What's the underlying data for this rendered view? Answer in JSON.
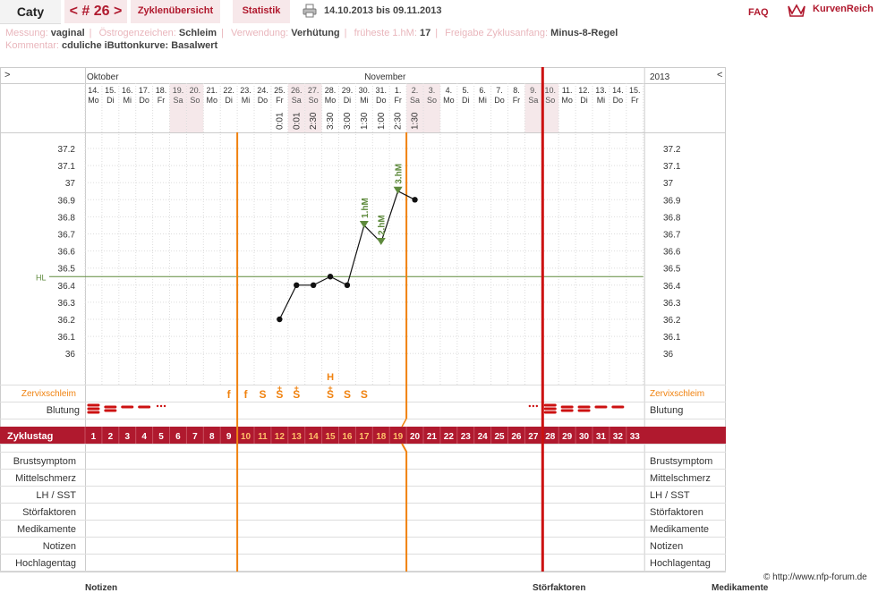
{
  "header": {
    "user": "Caty",
    "cycle_label": "< # 26 >",
    "tabs": [
      "Zyklenübersicht",
      "Statistik"
    ],
    "date_range": "14.10.2013 bis 09.11.2013",
    "faq": "FAQ",
    "brand": "KurvenReich"
  },
  "meta": {
    "messung_label": "Messung:",
    "messung": "vaginal",
    "oestrogen_label": "Östrogenzeichen:",
    "oestrogen": "Schleim",
    "verwendung_label": "Verwendung:",
    "verwendung": "Verhütung",
    "hm_label": "früheste 1.hM:",
    "hm": "17",
    "anfang_label": "Freigabe Zyklusanfang:",
    "anfang": "Minus-8-Regel",
    "kommentar_label": "Kommentar:",
    "kommentar": "cduliche iButtonkurve: Basalwert"
  },
  "chart_data": {
    "type": "line",
    "corner_left": ">",
    "corner_right": "<",
    "months": [
      {
        "label": "Oktober",
        "day_index": 0
      },
      {
        "label": "November",
        "day_index": 18
      }
    ],
    "year": "2013",
    "days": [
      {
        "d": "14.",
        "w": "Mo"
      },
      {
        "d": "15.",
        "w": "Di"
      },
      {
        "d": "16.",
        "w": "Mi"
      },
      {
        "d": "17.",
        "w": "Do"
      },
      {
        "d": "18.",
        "w": "Fr"
      },
      {
        "d": "19.",
        "w": "Sa"
      },
      {
        "d": "20.",
        "w": "So"
      },
      {
        "d": "21.",
        "w": "Mo"
      },
      {
        "d": "22.",
        "w": "Di"
      },
      {
        "d": "23.",
        "w": "Mi"
      },
      {
        "d": "24.",
        "w": "Do"
      },
      {
        "d": "25.",
        "w": "Fr"
      },
      {
        "d": "26.",
        "w": "Sa"
      },
      {
        "d": "27.",
        "w": "So"
      },
      {
        "d": "28.",
        "w": "Mo"
      },
      {
        "d": "29.",
        "w": "Di"
      },
      {
        "d": "30.",
        "w": "Mi"
      },
      {
        "d": "31.",
        "w": "Do"
      },
      {
        "d": "1.",
        "w": "Fr"
      },
      {
        "d": "2.",
        "w": "Sa"
      },
      {
        "d": "3.",
        "w": "So"
      },
      {
        "d": "4.",
        "w": "Mo"
      },
      {
        "d": "5.",
        "w": "Di"
      },
      {
        "d": "6.",
        "w": "Mi"
      },
      {
        "d": "7.",
        "w": "Do"
      },
      {
        "d": "8.",
        "w": "Fr"
      },
      {
        "d": "9.",
        "w": "Sa"
      },
      {
        "d": "10.",
        "w": "So"
      },
      {
        "d": "11.",
        "w": "Mo"
      },
      {
        "d": "12.",
        "w": "Di"
      },
      {
        "d": "13.",
        "w": "Mi"
      },
      {
        "d": "14.",
        "w": "Do"
      },
      {
        "d": "15.",
        "w": "Fr"
      }
    ],
    "weekend_indices": [
      5,
      6,
      12,
      13,
      19,
      20,
      26,
      27
    ],
    "times": [
      {
        "day": 11,
        "t": "0:01"
      },
      {
        "day": 12,
        "t": "0:01"
      },
      {
        "day": 13,
        "t": "2:30"
      },
      {
        "day": 14,
        "t": "3:30"
      },
      {
        "day": 15,
        "t": "3:00"
      },
      {
        "day": 16,
        "t": "1:30"
      },
      {
        "day": 17,
        "t": "1:00"
      },
      {
        "day": 18,
        "t": "2:30"
      },
      {
        "day": 19,
        "t": "1:30"
      }
    ],
    "ylim": [
      35.9,
      37.2
    ],
    "yticks": [
      "37.2",
      "37.1",
      "37",
      "36.9",
      "36.8",
      "36.7",
      "36.6",
      "36.5",
      "36.4",
      "36.3",
      "36.2",
      "36.1",
      "36"
    ],
    "temperatures": [
      {
        "day": 11,
        "value": 36.2
      },
      {
        "day": 12,
        "value": 36.4
      },
      {
        "day": 13,
        "value": 36.4
      },
      {
        "day": 14,
        "value": 36.45
      },
      {
        "day": 15,
        "value": 36.4
      },
      {
        "day": 16,
        "value": 36.75
      },
      {
        "day": 17,
        "value": 36.65
      },
      {
        "day": 18,
        "value": 36.95
      },
      {
        "day": 19,
        "value": 36.9
      }
    ],
    "markers": [
      {
        "day": 16,
        "label": "1.hM"
      },
      {
        "day": 17,
        "label": "2.hM"
      },
      {
        "day": 18,
        "label": "3.hM"
      }
    ],
    "hl": {
      "label": "HL",
      "value": 36.45
    },
    "orange_lines": [
      9,
      19
    ],
    "red_line": 27,
    "mucus_label": "Zervixschleim",
    "mucus": [
      {
        "day": 8,
        "s": "f"
      },
      {
        "day": 9,
        "s": "f"
      },
      {
        "day": 10,
        "s": "S"
      },
      {
        "day": 11,
        "s": "S"
      },
      {
        "day": 12,
        "s": "S"
      },
      {
        "day": 14,
        "s": "S"
      },
      {
        "day": 15,
        "s": "S"
      },
      {
        "day": 16,
        "s": "S"
      }
    ],
    "mucus_plus": [
      11,
      12,
      14
    ],
    "mucus_h": {
      "day": 14,
      "label": "H"
    },
    "bleeding_label": "Blutung",
    "bleeding": [
      {
        "day": 0,
        "level": 3
      },
      {
        "day": 1,
        "level": 2
      },
      {
        "day": 2,
        "level": 1
      },
      {
        "day": 3,
        "level": 1
      },
      {
        "day": 4,
        "level": 0
      },
      {
        "day": 26,
        "level": 0
      },
      {
        "day": 27,
        "level": 3
      },
      {
        "day": 28,
        "level": 2
      },
      {
        "day": 29,
        "level": 2
      },
      {
        "day": 30,
        "level": 1
      },
      {
        "day": 31,
        "level": 1
      }
    ],
    "cycle_label": "Zyklustag",
    "cycle_days": [
      "1",
      "2",
      "3",
      "4",
      "5",
      "6",
      "7",
      "8",
      "9",
      "10",
      "11",
      "12",
      "13",
      "14",
      "15",
      "16",
      "17",
      "18",
      "19",
      "20",
      "21",
      "22",
      "23",
      "24",
      "25",
      "26",
      "27",
      "28",
      "29",
      "30",
      "31",
      "32",
      "33"
    ],
    "cycle_highlight": [
      9,
      10,
      11,
      12,
      13,
      14,
      15,
      16,
      17,
      18
    ],
    "extra_rows": [
      "Brustsymptom",
      "Mittelschmerz",
      "LH / SST",
      "Störfaktoren",
      "Medikamente",
      "Notizen",
      "Hochlagentag"
    ],
    "colors": {
      "accent": "#b0192e",
      "orange": "#f0820f",
      "red": "#cc1111",
      "green": "#5e8a3c",
      "weekend": "#f5e8ea"
    }
  },
  "footer": {
    "copyright": "© http://www.nfp-forum.de",
    "below": [
      "Notizen",
      "Störfaktoren",
      "Medikamente"
    ]
  }
}
